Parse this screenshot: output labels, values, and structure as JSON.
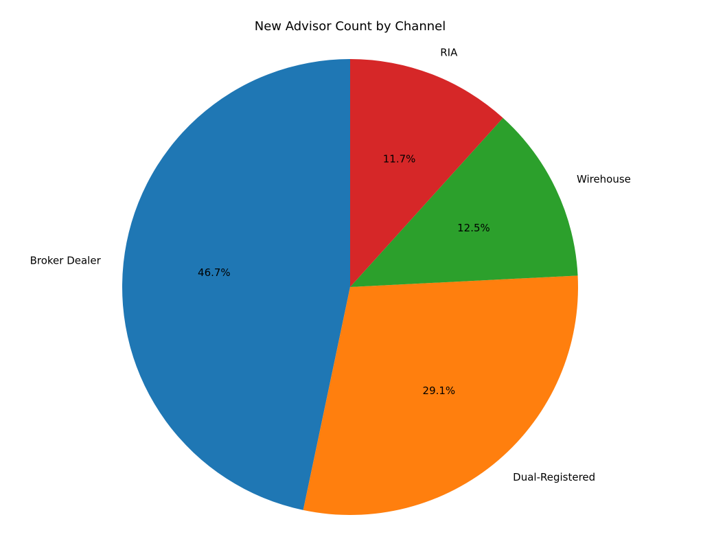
{
  "chart_data": {
    "type": "pie",
    "title": "New Advisor Count by Channel",
    "categories": [
      "Broker Dealer",
      "Dual-Registered",
      "Wirehouse",
      "RIA"
    ],
    "values": [
      46.7,
      29.1,
      12.5,
      11.7
    ],
    "value_labels": [
      "46.7%",
      "29.1%",
      "12.5%",
      "11.7%"
    ],
    "colors": [
      "#1f77b4",
      "#ff7f0e",
      "#2ca02c",
      "#d62728"
    ]
  }
}
